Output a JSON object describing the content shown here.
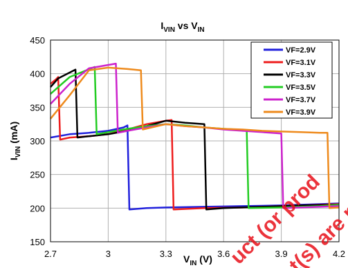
{
  "chart_data": {
    "type": "line",
    "title": {
      "main": "I",
      "main_sub": "VIN",
      "mid": " vs V",
      "mid_sub": "IN"
    },
    "xlabel": {
      "main": "V",
      "sub": "IN",
      "unit": " (V)"
    },
    "ylabel": {
      "main": "I",
      "sub": "VIN",
      "unit": " (mA)"
    },
    "xlim": [
      2.7,
      4.2
    ],
    "ylim": [
      150,
      450
    ],
    "xticks": [
      "2.7",
      "3",
      "3.3",
      "3.6",
      "3.9",
      "4.2"
    ],
    "yticks": [
      "150",
      "200",
      "250",
      "300",
      "350",
      "400",
      "450"
    ],
    "grid": true,
    "legend_position": "top-right",
    "series": [
      {
        "name": "VF=2.9V",
        "color": "#1f1fdc",
        "x": [
          2.7,
          2.8,
          2.9,
          3.0,
          3.08,
          3.1,
          3.11,
          3.2,
          3.3,
          3.5,
          3.7,
          3.9,
          4.1,
          4.2
        ],
        "y": [
          305,
          310,
          312,
          315,
          320,
          323,
          198,
          200,
          201,
          202,
          203,
          204,
          206,
          207
        ]
      },
      {
        "name": "VF=3.1V",
        "color": "#ee1c1c",
        "x": [
          2.7,
          2.73,
          2.74,
          2.75,
          2.8,
          2.9,
          3.0,
          3.1,
          3.2,
          3.3,
          3.33,
          3.34,
          3.5,
          3.7,
          3.9,
          4.1,
          4.2
        ],
        "y": [
          385,
          392,
          395,
          302,
          305,
          307,
          310,
          317,
          325,
          330,
          331,
          198,
          200,
          201,
          203,
          205,
          206
        ]
      },
      {
        "name": "VF=3.3V",
        "color": "#000000",
        "x": [
          2.7,
          2.74,
          2.83,
          2.84,
          2.9,
          3.0,
          3.1,
          3.2,
          3.3,
          3.4,
          3.5,
          3.51,
          3.6,
          3.8,
          4.0,
          4.2
        ],
        "y": [
          380,
          393,
          406,
          305,
          307,
          310,
          315,
          322,
          330,
          327,
          325,
          198,
          200,
          202,
          204,
          205
        ]
      },
      {
        "name": "VF=3.5V",
        "color": "#22cc22",
        "x": [
          2.7,
          2.8,
          2.93,
          2.94,
          3.0,
          3.1,
          3.2,
          3.3,
          3.4,
          3.5,
          3.6,
          3.72,
          3.73,
          3.9,
          4.1,
          4.2
        ],
        "y": [
          370,
          395,
          410,
          310,
          313,
          318,
          322,
          325,
          323,
          320,
          318,
          316,
          200,
          201,
          203,
          205
        ]
      },
      {
        "name": "VF=3.7V",
        "color": "#cc22cc",
        "x": [
          2.7,
          2.8,
          2.9,
          3.04,
          3.05,
          3.1,
          3.2,
          3.3,
          3.4,
          3.5,
          3.6,
          3.7,
          3.8,
          3.9,
          3.91,
          4.0,
          4.2
        ],
        "y": [
          355,
          385,
          408,
          415,
          312,
          315,
          320,
          325,
          322,
          320,
          317,
          315,
          313,
          311,
          200,
          201,
          203
        ]
      },
      {
        "name": "VF=3.9V",
        "color": "#ee8a1c",
        "x": [
          2.7,
          2.8,
          2.9,
          3.0,
          3.1,
          3.17,
          3.18,
          3.3,
          3.4,
          3.5,
          3.6,
          3.7,
          3.8,
          3.9,
          4.0,
          4.1,
          4.14,
          4.15,
          4.2
        ],
        "y": [
          333,
          368,
          405,
          409,
          407,
          405,
          317,
          325,
          322,
          320,
          318,
          317,
          315,
          314,
          313,
          312,
          312,
          200,
          201
        ]
      }
    ]
  },
  "watermark": {
    "line1": "uct (or prod",
    "line2": "t(s) are n"
  }
}
